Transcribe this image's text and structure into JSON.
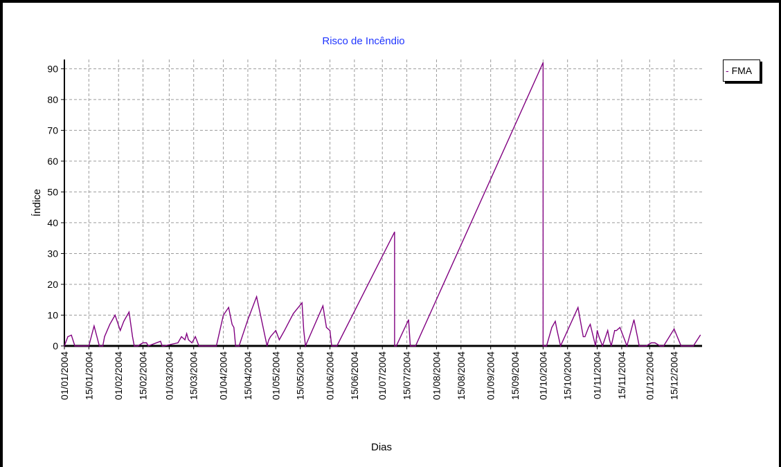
{
  "chart_data": {
    "type": "line",
    "title": "Risco de Incêndio",
    "xlabel": "Dias",
    "ylabel": "Índice",
    "ylim": [
      0,
      93
    ],
    "xlim": [
      "2004-01-01",
      "2004-12-31"
    ],
    "yticks": [
      0,
      10,
      20,
      30,
      40,
      50,
      60,
      70,
      80,
      90
    ],
    "xtick_labels": [
      "01/01/2004",
      "15/01/2004",
      "01/02/2004",
      "15/02/2004",
      "01/03/2004",
      "15/03/2004",
      "01/04/2004",
      "15/04/2004",
      "01/05/2004",
      "15/05/2004",
      "01/06/2004",
      "15/06/2004",
      "01/07/2004",
      "15/07/2004",
      "01/08/2004",
      "15/08/2004",
      "01/09/2004",
      "15/09/2004",
      "01/10/2004",
      "15/10/2004",
      "01/11/2004",
      "15/11/2004",
      "01/12/2004",
      "15/12/2004"
    ],
    "xtick_dates": [
      "2004-01-01",
      "2004-01-15",
      "2004-02-01",
      "2004-02-15",
      "2004-03-01",
      "2004-03-15",
      "2004-04-01",
      "2004-04-15",
      "2004-05-01",
      "2004-05-15",
      "2004-06-01",
      "2004-06-15",
      "2004-07-01",
      "2004-07-15",
      "2004-08-01",
      "2004-08-15",
      "2004-09-01",
      "2004-09-15",
      "2004-10-01",
      "2004-10-15",
      "2004-11-01",
      "2004-11-15",
      "2004-12-01",
      "2004-12-15"
    ],
    "grid": true,
    "legend_position": "top-right",
    "series": [
      {
        "name": "FMA",
        "color": "#800080",
        "x": [
          "2004-01-01",
          "2004-01-03",
          "2004-01-05",
          "2004-01-07",
          "2004-01-09",
          "2004-01-12",
          "2004-01-15",
          "2004-01-18",
          "2004-01-21",
          "2004-01-23",
          "2004-01-24",
          "2004-01-27",
          "2004-01-30",
          "2004-02-02",
          "2004-02-04",
          "2004-02-05",
          "2004-02-07",
          "2004-02-09",
          "2004-02-10",
          "2004-02-12",
          "2004-02-15",
          "2004-02-17",
          "2004-02-18",
          "2004-02-25",
          "2004-02-26",
          "2004-02-27",
          "2004-03-06",
          "2004-03-08",
          "2004-03-10",
          "2004-03-11",
          "2004-03-12",
          "2004-03-14",
          "2004-03-16",
          "2004-03-18",
          "2004-03-20",
          "2004-03-22",
          "2004-03-28",
          "2004-04-01",
          "2004-04-04",
          "2004-04-06",
          "2004-04-07",
          "2004-04-08",
          "2004-04-10",
          "2004-04-15",
          "2004-04-20",
          "2004-04-26",
          "2004-04-27",
          "2004-04-28",
          "2004-05-01",
          "2004-05-03",
          "2004-05-04",
          "2004-05-06",
          "2004-05-11",
          "2004-05-16",
          "2004-05-17",
          "2004-05-18",
          "2004-05-28",
          "2004-05-30",
          "2004-06-01",
          "2004-06-02",
          "2004-06-03",
          "2004-06-04",
          "2004-06-05",
          "2004-07-08",
          "2004-07-08",
          "2004-07-09",
          "2004-07-16",
          "2004-07-17",
          "2004-07-20",
          "2004-10-01",
          "2004-10-01",
          "2004-10-03",
          "2004-10-06",
          "2004-10-08",
          "2004-10-09",
          "2004-10-11",
          "2004-10-21",
          "2004-10-24",
          "2004-10-25",
          "2004-10-27",
          "2004-10-28",
          "2004-10-31",
          "2004-11-01",
          "2004-11-02",
          "2004-11-04",
          "2004-11-07",
          "2004-11-08",
          "2004-11-09",
          "2004-11-11",
          "2004-11-12",
          "2004-11-14",
          "2004-11-18",
          "2004-11-22",
          "2004-11-24",
          "2004-11-25",
          "2004-11-29",
          "2004-12-02",
          "2004-12-04",
          "2004-12-07",
          "2004-12-08",
          "2004-12-09",
          "2004-12-15",
          "2004-12-19",
          "2004-12-20",
          "2004-12-26",
          "2004-12-30"
        ],
        "y": [
          0,
          3,
          3.5,
          0,
          0,
          0,
          0,
          6.5,
          0,
          0,
          3,
          7,
          10,
          5,
          8,
          9,
          11,
          3,
          0,
          0,
          1,
          1,
          0,
          1.5,
          0,
          0,
          1,
          3,
          2,
          4,
          2,
          1,
          3,
          0,
          0,
          0,
          0,
          10,
          12.5,
          7,
          6,
          0,
          0,
          8.5,
          16,
          0,
          2,
          3,
          5,
          2,
          3,
          5,
          10.5,
          14,
          5,
          0,
          13,
          6,
          5,
          0,
          0,
          0,
          0,
          37,
          0,
          0,
          8.5,
          0,
          0,
          92,
          0,
          0,
          6,
          8,
          5,
          0,
          12.5,
          3,
          3,
          6,
          7,
          0,
          5,
          3,
          0,
          5,
          2,
          0,
          5,
          5,
          6,
          0,
          8.5,
          3,
          0,
          0,
          1,
          1,
          0,
          0,
          0,
          5.5,
          0,
          0,
          0,
          3.5
        ]
      }
    ]
  }
}
